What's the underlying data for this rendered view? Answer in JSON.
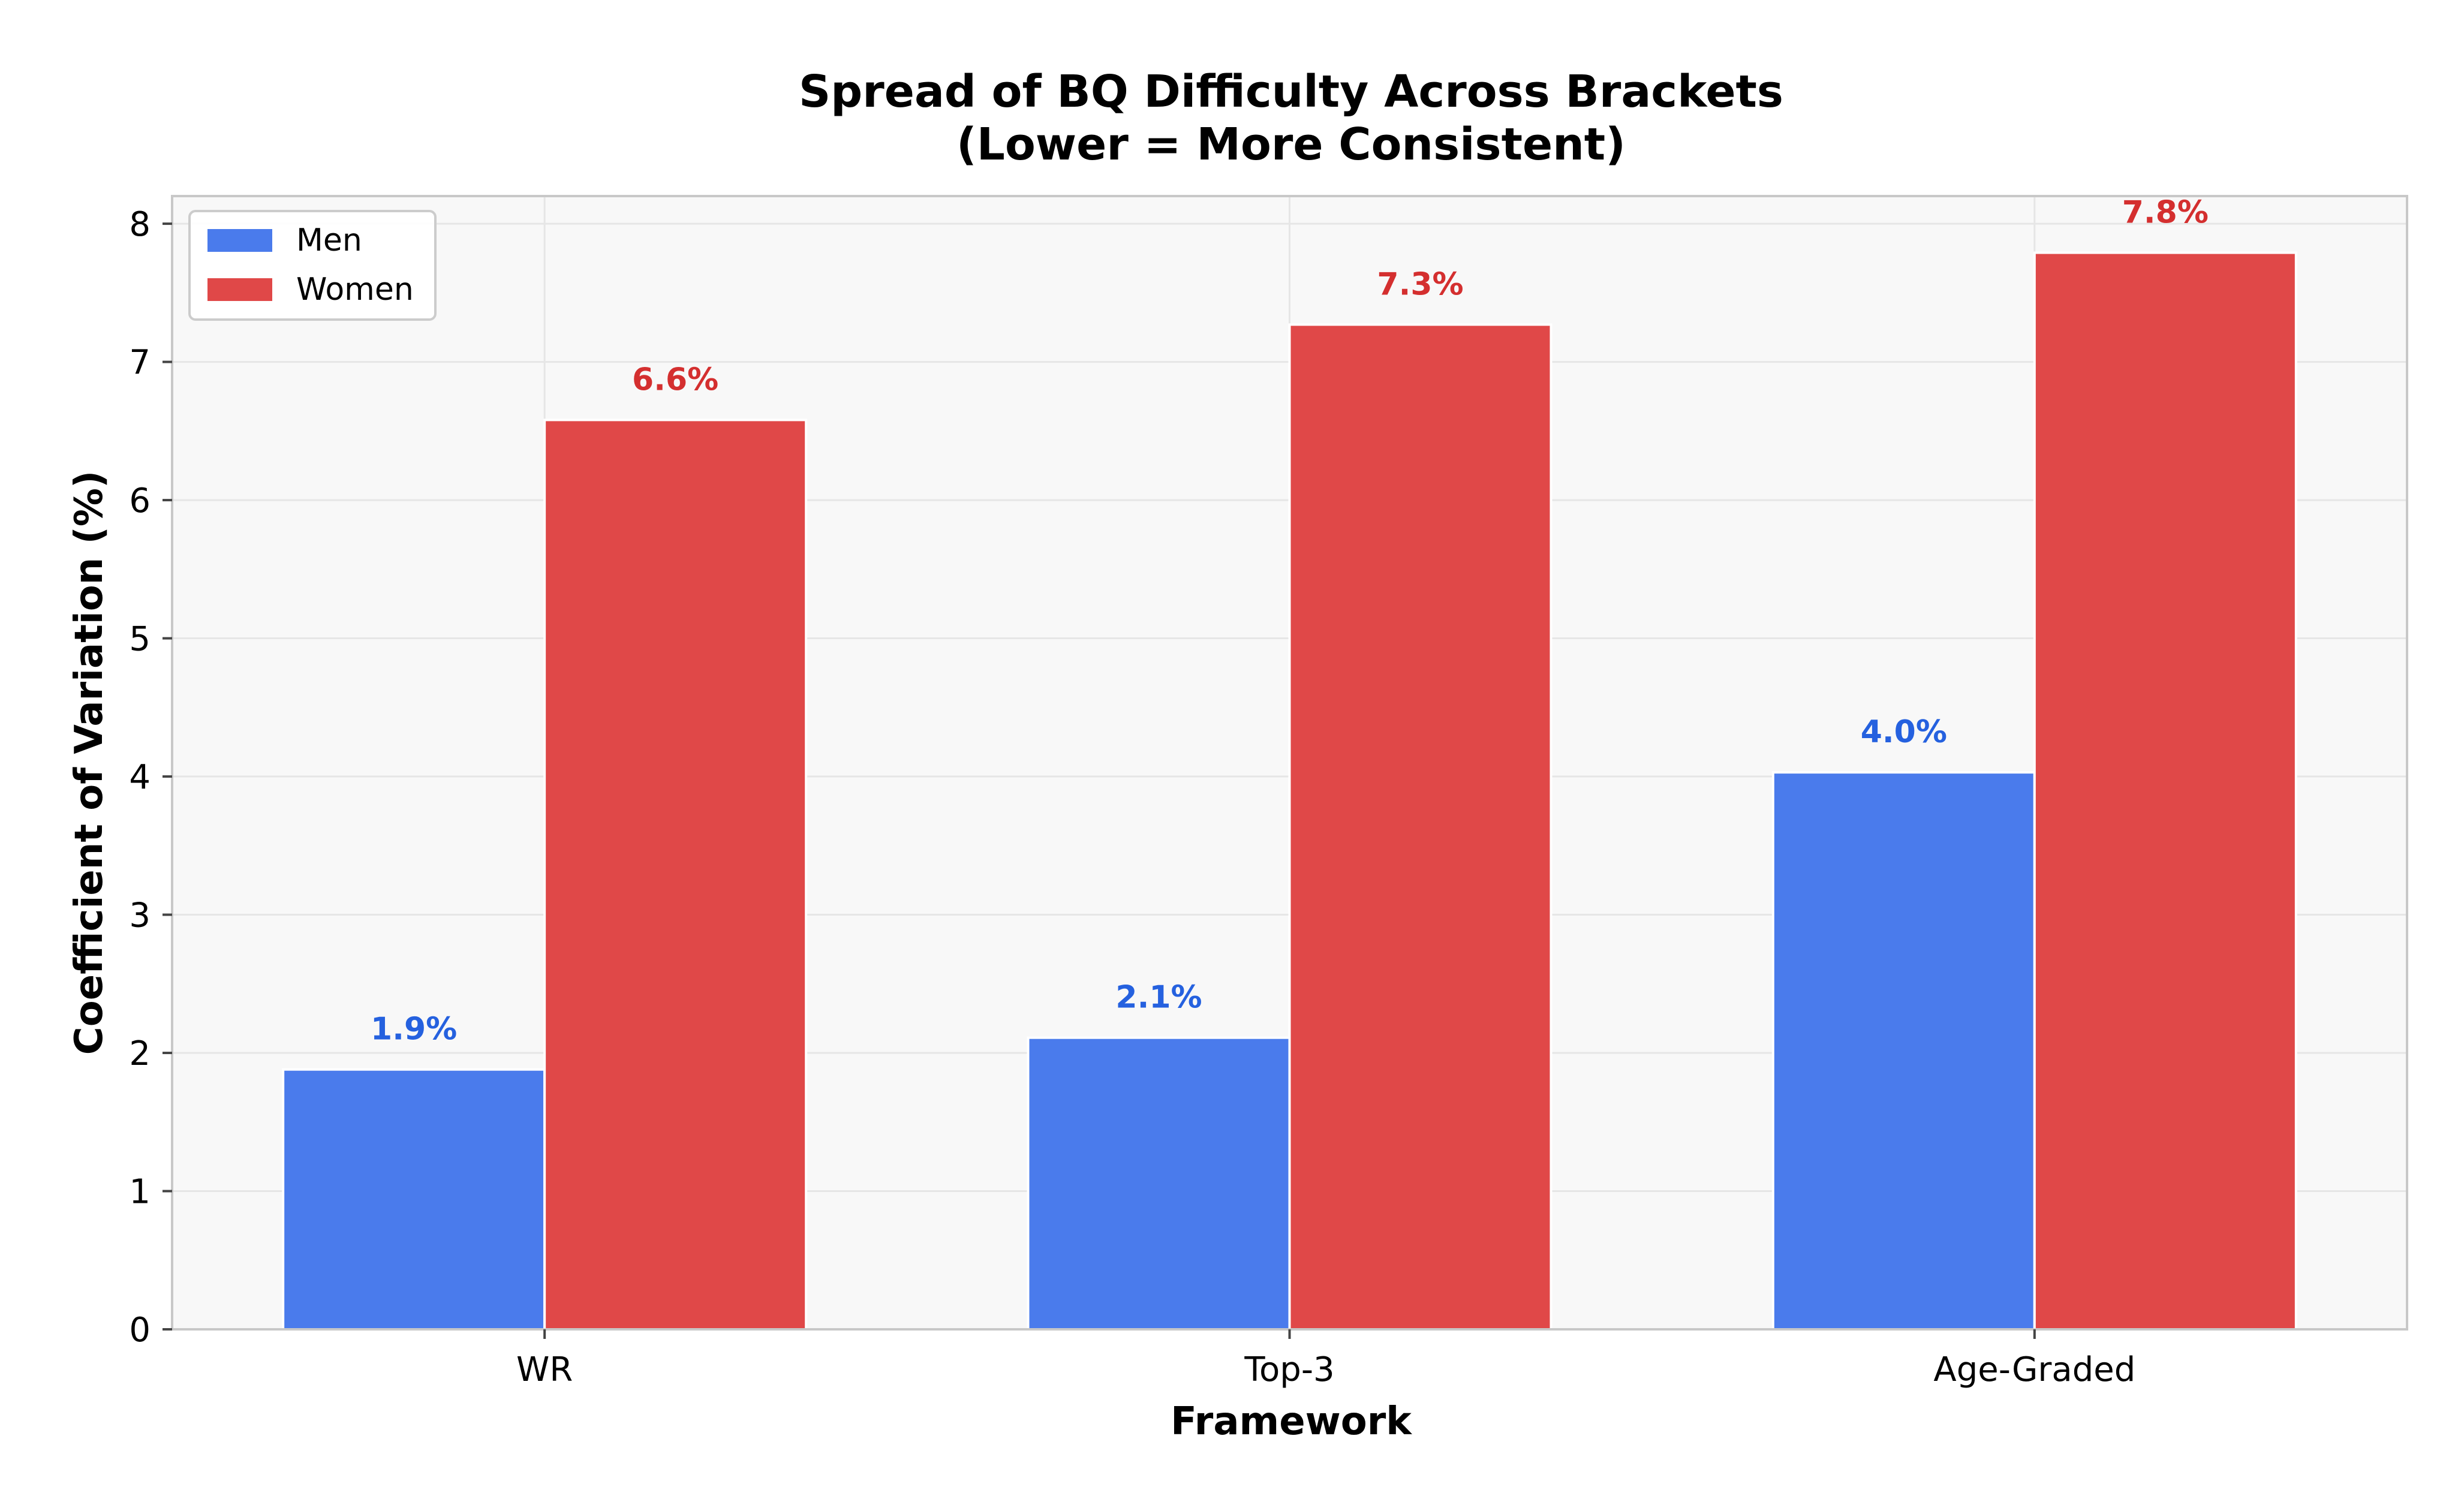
{
  "chart_data": {
    "type": "bar",
    "title": [
      "Spread of BQ Difficulty Across Brackets",
      "(Lower = More Consistent)"
    ],
    "xlabel": "Framework",
    "ylabel": "Coefficient of Variation (%)",
    "categories": [
      "WR",
      "Top-3",
      "Age-Graded"
    ],
    "ylim": [
      0,
      8.2
    ],
    "yticks": [
      0,
      1,
      2,
      3,
      4,
      5,
      6,
      7,
      8
    ],
    "grid": true,
    "legend_position": "top-left",
    "series": [
      {
        "name": "Men",
        "values": [
          1.88,
          2.11,
          4.03
        ],
        "labels": [
          "1.9%",
          "2.1%",
          "4.0%"
        ],
        "color": "#4a7bec",
        "label_color": "#2561df"
      },
      {
        "name": "Women",
        "values": [
          6.58,
          7.27,
          7.79
        ],
        "labels": [
          "6.6%",
          "7.3%",
          "7.8%"
        ],
        "color": "#e04848",
        "label_color": "#d42f2f"
      }
    ],
    "colors": {
      "plot_background": "#f8f8f8",
      "grid": "#e6e6e6",
      "frame": "#c8c8c8"
    }
  }
}
